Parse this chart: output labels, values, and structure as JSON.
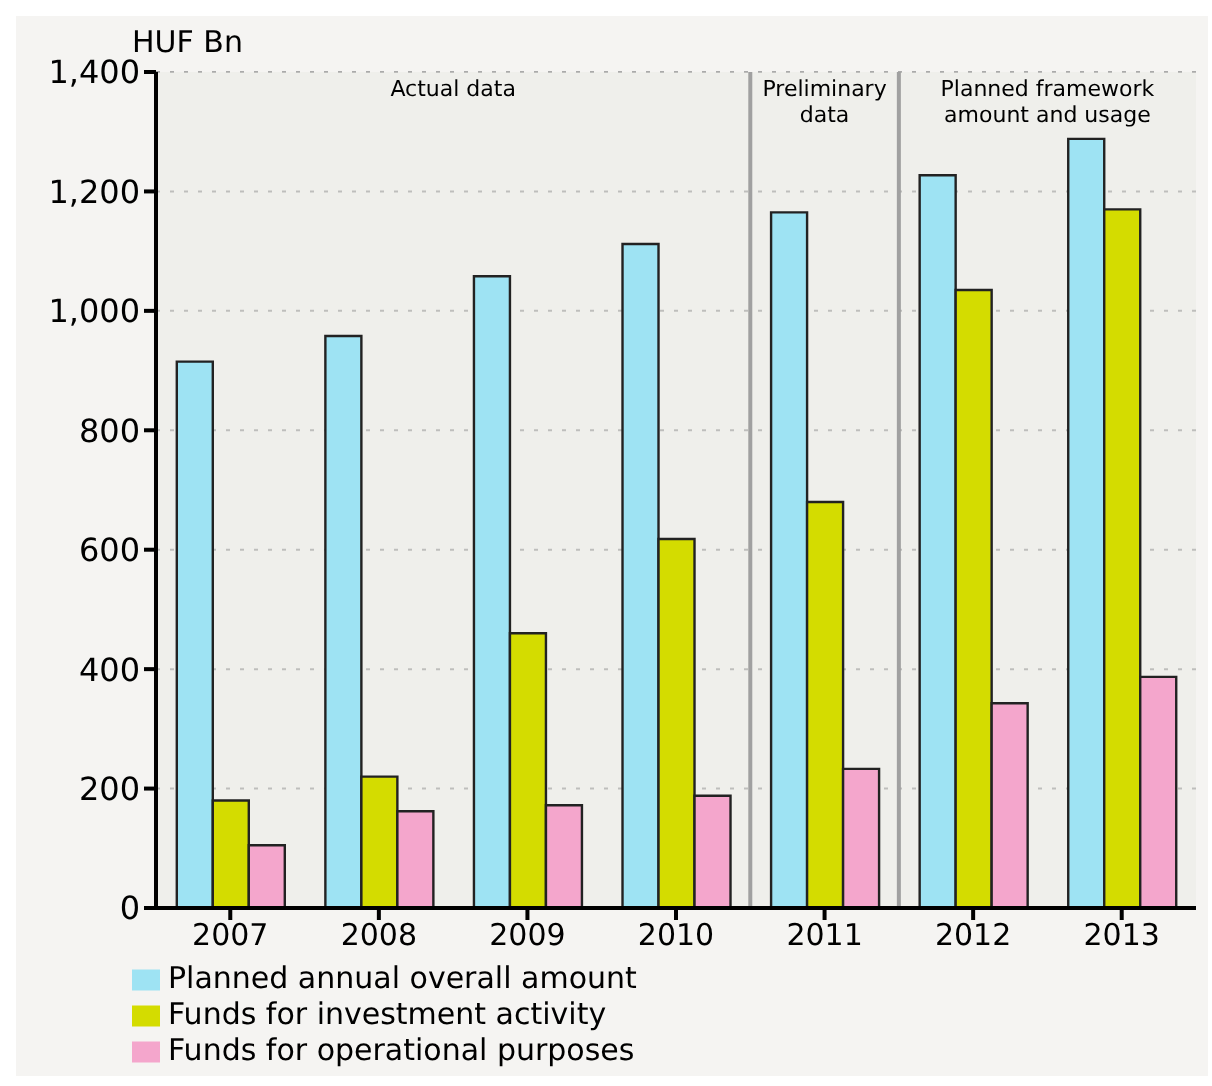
{
  "chart_data": {
    "type": "bar",
    "ylabel": "HUF Bn",
    "categories": [
      "2007",
      "2008",
      "2009",
      "2010",
      "2011",
      "2012",
      "2013"
    ],
    "series": [
      {
        "name": "Planned annual overall amount",
        "color": "#9ee3f3",
        "values": [
          915,
          958,
          1058,
          1112,
          1165,
          1227,
          1288
        ]
      },
      {
        "name": "Funds for investment activity",
        "color": "#d4dc00",
        "values": [
          180,
          220,
          460,
          618,
          680,
          1035,
          1170
        ]
      },
      {
        "name": "Funds for operational purposes",
        "color": "#f4a6cc",
        "values": [
          105,
          162,
          172,
          188,
          233,
          343,
          387
        ]
      }
    ],
    "ylim": [
      0,
      1400
    ],
    "yticks": [
      0,
      {
        "value": 200,
        "label": "200"
      },
      {
        "value": 400,
        "label": "400"
      },
      {
        "value": 600,
        "label": "600"
      },
      {
        "value": 800,
        "label": "800"
      },
      {
        "value": 1000,
        "label": "1,000"
      },
      {
        "value": 1200,
        "label": "1,200"
      },
      {
        "value": 1400,
        "label": "1,400"
      }
    ],
    "bands": [
      {
        "axis": "x",
        "from": "2007",
        "to": "2010",
        "label": "Actual data"
      },
      {
        "axis": "x",
        "from": "2011",
        "to": "2011",
        "label": "Preliminary data"
      },
      {
        "axis": "x",
        "from": "2012",
        "to": "2013",
        "label": "Planned framework amount and usage"
      }
    ],
    "grid": "y",
    "legend": "bottom"
  }
}
